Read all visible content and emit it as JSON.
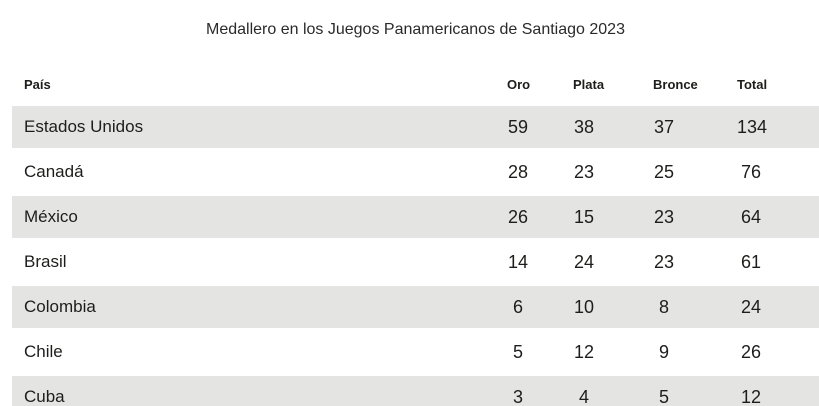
{
  "chart_data": {
    "type": "table",
    "title": "Medallero en los Juegos Panamericanos de Santiago 2023",
    "columns": [
      "País",
      "Oro",
      "Plata",
      "Bronce",
      "Total"
    ],
    "rows": [
      [
        "Estados Unidos",
        59,
        38,
        37,
        134
      ],
      [
        "Canadá",
        28,
        23,
        25,
        76
      ],
      [
        "México",
        26,
        15,
        23,
        64
      ],
      [
        "Brasil",
        14,
        24,
        23,
        61
      ],
      [
        "Colombia",
        6,
        10,
        8,
        24
      ],
      [
        "Chile",
        5,
        12,
        9,
        26
      ],
      [
        "Cuba",
        3,
        4,
        5,
        12
      ]
    ],
    "layout_hints": {
      "alternating_row_stripes": true,
      "striped_row_indexes": [
        0,
        2,
        4,
        6
      ],
      "number_columns_alignment": "centered-on-column",
      "legend": "none",
      "grid": "off"
    },
    "colors": {
      "background": "#ffffff",
      "row_stripe": "#e4e4e2",
      "text": "#1d1d1b",
      "title_text": "#2a2a2a"
    }
  }
}
